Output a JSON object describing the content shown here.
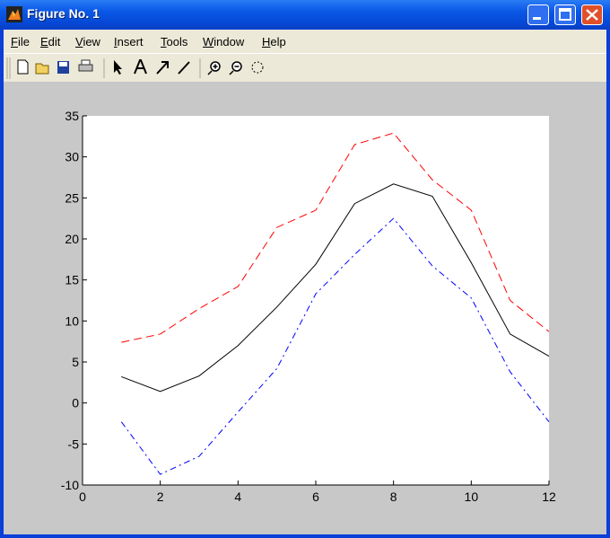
{
  "window": {
    "title": "Figure No. 1",
    "menus": [
      "File",
      "Edit",
      "View",
      "Insert",
      "Tools",
      "Window",
      "Help"
    ]
  },
  "chart_data": {
    "type": "line",
    "x": [
      1,
      2,
      3,
      4,
      5,
      6,
      7,
      8,
      9,
      10,
      11,
      12
    ],
    "series": [
      {
        "color": "#ff0000",
        "linestyle": "dashed",
        "values": [
          7.4,
          8.4,
          11.5,
          14.2,
          21.4,
          23.5,
          31.5,
          32.9,
          27.2,
          23.5,
          12.5,
          8.7
        ]
      },
      {
        "color": "#000000",
        "linestyle": "solid",
        "values": [
          3.2,
          1.4,
          3.3,
          7.0,
          11.7,
          16.9,
          24.3,
          26.7,
          25.2,
          17.1,
          8.4,
          5.7
        ]
      },
      {
        "color": "#0000ff",
        "linestyle": "dashdot",
        "values": [
          -2.3,
          -8.7,
          -6.5,
          -1.1,
          4.2,
          13.3,
          18.1,
          22.5,
          16.7,
          12.8,
          3.8,
          -2.3
        ]
      }
    ],
    "xlim": [
      0,
      12
    ],
    "xticks": [
      0,
      2,
      4,
      6,
      8,
      10,
      12
    ],
    "ylim": [
      -10,
      35
    ],
    "yticks": [
      -10,
      -5,
      0,
      5,
      10,
      15,
      20,
      25,
      30,
      35
    ],
    "grid": false
  }
}
